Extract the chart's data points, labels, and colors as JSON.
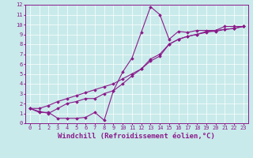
{
  "xlabel": "Windchill (Refroidissement éolien,°C)",
  "xlim": [
    -0.5,
    23.5
  ],
  "ylim": [
    0,
    12
  ],
  "xticks": [
    0,
    1,
    2,
    3,
    4,
    5,
    6,
    7,
    8,
    9,
    10,
    11,
    12,
    13,
    14,
    15,
    16,
    17,
    18,
    19,
    20,
    21,
    22,
    23
  ],
  "yticks": [
    0,
    1,
    2,
    3,
    4,
    5,
    6,
    7,
    8,
    9,
    10,
    11,
    12
  ],
  "bg_color": "#c8eaea",
  "line_color": "#8b1a8b",
  "grid_color": "#ffffff",
  "line1_x": [
    0,
    1,
    2,
    3,
    4,
    5,
    6,
    7,
    8,
    9,
    10,
    11,
    12,
    13,
    14,
    15,
    16,
    17,
    18,
    19,
    20,
    21,
    22,
    23
  ],
  "line1_y": [
    1.5,
    1.1,
    1.1,
    0.5,
    0.5,
    0.5,
    0.6,
    1.1,
    0.3,
    3.3,
    5.2,
    6.6,
    9.2,
    11.8,
    11.0,
    8.5,
    9.3,
    9.2,
    9.4,
    9.4,
    9.4,
    9.8,
    9.8,
    9.8
  ],
  "line2_x": [
    0,
    1,
    2,
    3,
    4,
    5,
    6,
    7,
    8,
    9,
    10,
    11,
    12,
    13,
    14,
    15,
    16,
    17,
    18,
    19,
    20,
    21,
    22,
    23
  ],
  "line2_y": [
    1.5,
    1.2,
    1.0,
    1.5,
    2.0,
    2.2,
    2.5,
    2.5,
    3.0,
    3.3,
    4.0,
    4.8,
    5.5,
    6.5,
    7.0,
    8.0,
    8.5,
    8.8,
    9.0,
    9.3,
    9.3,
    9.5,
    9.6,
    9.8
  ],
  "line3_x": [
    0,
    1,
    2,
    3,
    4,
    5,
    6,
    7,
    8,
    9,
    10,
    11,
    12,
    13,
    14,
    15,
    16,
    17,
    18,
    19,
    20,
    21,
    22,
    23
  ],
  "line3_y": [
    1.5,
    1.5,
    1.8,
    2.2,
    2.5,
    2.8,
    3.1,
    3.4,
    3.7,
    4.0,
    4.5,
    5.0,
    5.5,
    6.3,
    6.8,
    8.0,
    8.5,
    8.8,
    9.0,
    9.2,
    9.4,
    9.5,
    9.6,
    9.8
  ],
  "marker": "D",
  "marker_size": 1.8,
  "linewidth": 0.8,
  "font_family": "monospace",
  "tick_fontsize": 5.0,
  "xlabel_fontsize": 6.5,
  "xlabel_fontweight": "bold"
}
